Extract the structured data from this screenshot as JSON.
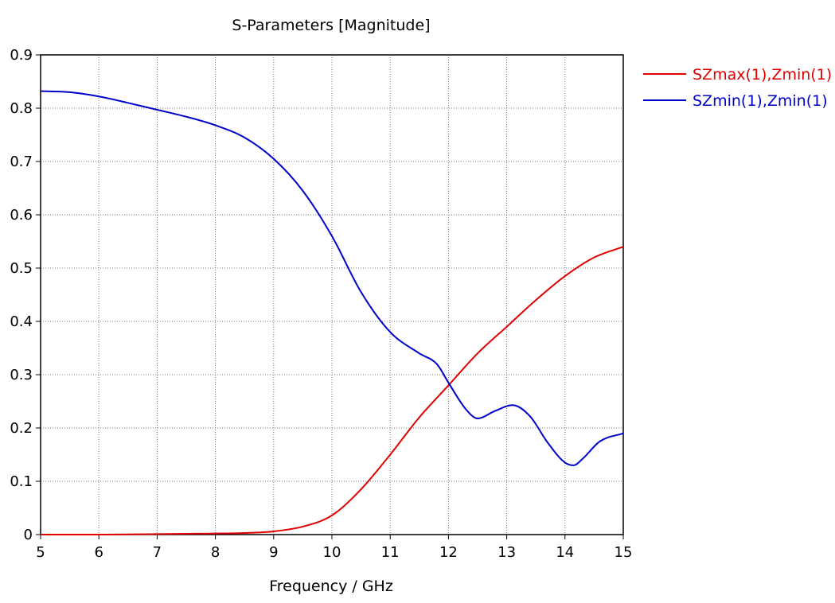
{
  "chart_data": {
    "type": "line",
    "title": "S-Parameters [Magnitude]",
    "xlabel": "Frequency / GHz",
    "ylabel": "",
    "xlim": [
      5,
      15
    ],
    "ylim": [
      0,
      0.9
    ],
    "xticks": [
      5,
      6,
      7,
      8,
      9,
      10,
      11,
      12,
      13,
      14,
      15
    ],
    "yticks": [
      0,
      0.1,
      0.2,
      0.3,
      0.4,
      0.5,
      0.6,
      0.7,
      0.8,
      0.9
    ],
    "ytick_labels": [
      "0",
      "0.1",
      "0.2",
      "0.3",
      "0.4",
      "0.5",
      "0.6",
      "0.7",
      "0.8",
      "0.9"
    ],
    "grid": true,
    "legend_position": "right-top",
    "series": [
      {
        "name": "SZmax(1),Zmin(1)",
        "color": "#e00000",
        "x": [
          5,
          6,
          7,
          8,
          8.5,
          9,
          9.5,
          10,
          10.5,
          11,
          11.5,
          12,
          12.5,
          13,
          13.5,
          14,
          14.5,
          15
        ],
        "y": [
          0,
          0,
          0.001,
          0.002,
          0.003,
          0.006,
          0.015,
          0.036,
          0.085,
          0.15,
          0.22,
          0.28,
          0.34,
          0.39,
          0.44,
          0.485,
          0.52,
          0.54
        ]
      },
      {
        "name": "SZmin(1),Zmin(1)",
        "color": "#0000cc",
        "x": [
          5,
          5.5,
          6,
          6.5,
          7,
          7.5,
          8,
          8.5,
          9,
          9.5,
          10,
          10.5,
          11,
          11.5,
          11.8,
          12,
          12.3,
          12.5,
          12.8,
          13.1,
          13.4,
          13.7,
          14,
          14.15,
          14.3,
          14.6,
          15
        ],
        "y": [
          0.832,
          0.83,
          0.822,
          0.81,
          0.797,
          0.784,
          0.768,
          0.745,
          0.705,
          0.645,
          0.56,
          0.455,
          0.38,
          0.34,
          0.32,
          0.285,
          0.235,
          0.218,
          0.232,
          0.243,
          0.222,
          0.173,
          0.135,
          0.13,
          0.142,
          0.175,
          0.19
        ]
      }
    ]
  }
}
